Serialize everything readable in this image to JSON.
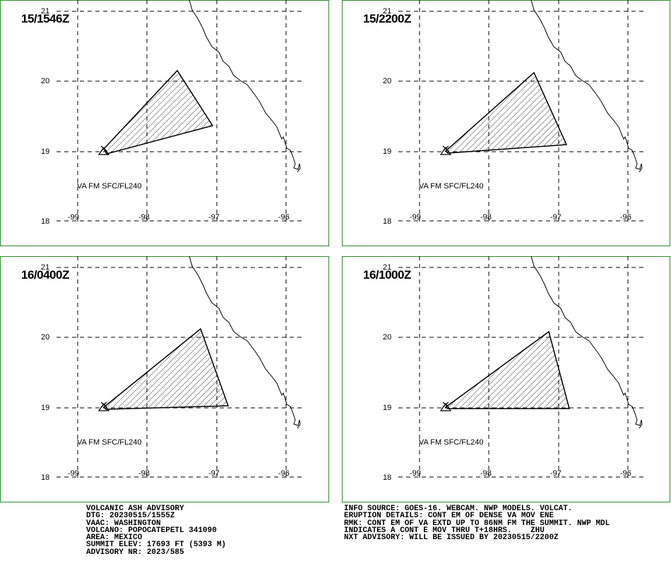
{
  "panels": [
    {
      "title": "15/1546Z",
      "level_label": "VA FM SFC/FL240"
    },
    {
      "title": "15/2200Z",
      "level_label": "VA FM SFC/FL240"
    },
    {
      "title": "16/0400Z",
      "level_label": "VA FM SFC/FL240"
    },
    {
      "title": "16/1000Z",
      "level_label": "VA FM SFC/FL240"
    }
  ],
  "lat_labels": [
    "21",
    "20",
    "19",
    "18"
  ],
  "lon_labels": [
    "-99",
    "-98",
    "-97",
    "-96"
  ],
  "map_colors": {
    "frame": "#2e8b2e",
    "grid": "#000000",
    "ash": "#000000"
  },
  "volcano_symbol": "volcano-triangle-icon",
  "advisory_left": [
    "VOLCANIC ASH ADVISORY",
    "DTG: 20230515/1555Z",
    "VAAC: WASHINGTON",
    "VOLCANO: POPOCATEPETL 341090",
    "AREA: MEXICO",
    "SUMMIT ELEV: 17693 FT (5393 M)",
    "ADVISORY NR: 2023/585"
  ],
  "advisory_right": [
    "INFO SOURCE: GOES-16. WEBCAM. NWP MODELS. VOLCAT.",
    "ERUPTION DETAILS: CONT EM OF DENSE VA MOV ENE",
    "RMK: CONT EM OF VA EXTD UP TO 86NM FM THE SUMMIT. NWP MDL",
    "INDICATES A CONT E MOV THRU T+18HRS.    ZHU",
    "NXT ADVISORY: WILL BE ISSUED BY 20230515/2200Z"
  ]
}
